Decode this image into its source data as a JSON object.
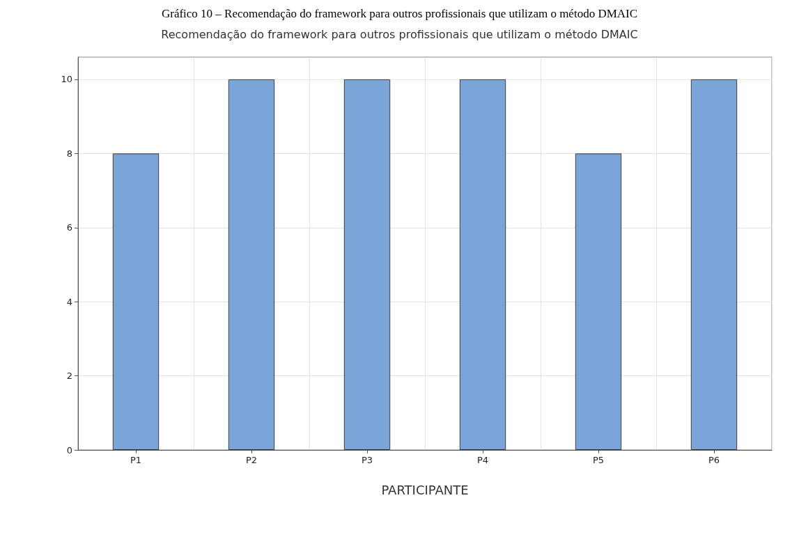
{
  "chart_data": {
    "type": "bar",
    "title": "Recomendação do framework para outros profissionais que utilizam o método DMAIC",
    "annotations": [
      "Gráfico 10 – Recomendação do framework para outros profissionais que utilizam o método DMAIC"
    ],
    "xlabel": "PARTICIPANTE",
    "categories": [
      "P1",
      "P2",
      "P3",
      "P4",
      "P5",
      "P6"
    ],
    "values": [
      8,
      10,
      10,
      10,
      8,
      10
    ],
    "color": "#7ba5d8",
    "ylim": [
      0,
      10.6
    ],
    "yticks": [
      0,
      2,
      4,
      6,
      8,
      10
    ],
    "grid": true
  }
}
